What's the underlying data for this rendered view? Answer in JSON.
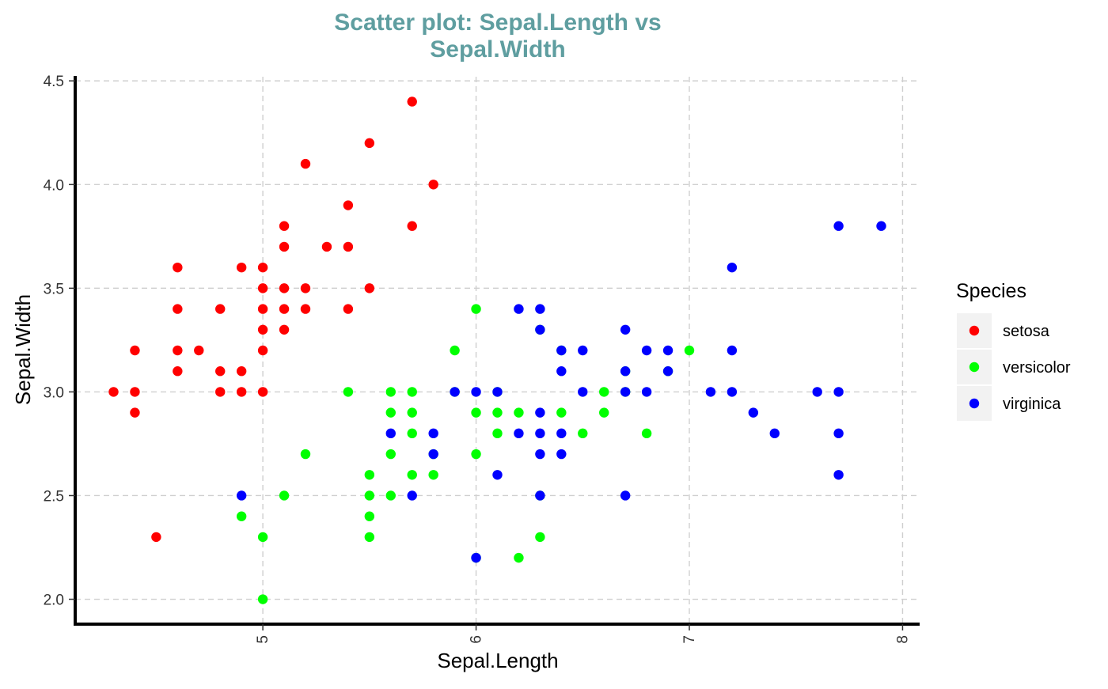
{
  "chart_data": {
    "type": "scatter",
    "title": [
      "Scatter plot: Sepal.Length vs",
      "Sepal.Width"
    ],
    "title_color": "#5f9ea0",
    "xlabel": "Sepal.Length",
    "ylabel": "Sepal.Width",
    "xlim": [
      4.12,
      8.08
    ],
    "ylim": [
      1.88,
      4.52
    ],
    "x_ticks": [
      "5",
      "6",
      "7",
      "8"
    ],
    "y_ticks": [
      "2.0",
      "2.5",
      "3.0",
      "3.5",
      "4.0",
      "4.5"
    ],
    "grid": true,
    "grid_style": "dashed",
    "legend": {
      "title": "Species",
      "position": "right"
    },
    "series": [
      {
        "name": "setosa",
        "color": "#ff0000",
        "points": [
          [
            4.3,
            3.0
          ],
          [
            4.4,
            2.9
          ],
          [
            4.4,
            3.0
          ],
          [
            4.4,
            3.2
          ],
          [
            4.5,
            2.3
          ],
          [
            4.6,
            3.1
          ],
          [
            4.6,
            3.2
          ],
          [
            4.6,
            3.4
          ],
          [
            4.6,
            3.6
          ],
          [
            4.7,
            3.2
          ],
          [
            4.8,
            3.0
          ],
          [
            4.8,
            3.1
          ],
          [
            4.8,
            3.4
          ],
          [
            4.9,
            3.0
          ],
          [
            4.9,
            3.1
          ],
          [
            4.9,
            3.6
          ],
          [
            5.0,
            3.0
          ],
          [
            5.0,
            3.2
          ],
          [
            5.0,
            3.3
          ],
          [
            5.0,
            3.4
          ],
          [
            5.0,
            3.5
          ],
          [
            5.0,
            3.6
          ],
          [
            5.1,
            3.3
          ],
          [
            5.1,
            3.4
          ],
          [
            5.1,
            3.5
          ],
          [
            5.1,
            3.7
          ],
          [
            5.1,
            3.8
          ],
          [
            5.2,
            3.4
          ],
          [
            5.2,
            3.5
          ],
          [
            5.2,
            4.1
          ],
          [
            5.3,
            3.7
          ],
          [
            5.4,
            3.4
          ],
          [
            5.4,
            3.7
          ],
          [
            5.4,
            3.9
          ],
          [
            5.5,
            3.5
          ],
          [
            5.5,
            4.2
          ],
          [
            5.7,
            3.8
          ],
          [
            5.7,
            4.4
          ],
          [
            5.8,
            4.0
          ]
        ]
      },
      {
        "name": "versicolor",
        "color": "#00ff00",
        "points": [
          [
            4.9,
            2.4
          ],
          [
            5.0,
            2.0
          ],
          [
            5.0,
            2.3
          ],
          [
            5.1,
            2.5
          ],
          [
            5.2,
            2.7
          ],
          [
            5.4,
            3.0
          ],
          [
            5.5,
            2.3
          ],
          [
            5.5,
            2.4
          ],
          [
            5.5,
            2.5
          ],
          [
            5.5,
            2.6
          ],
          [
            5.6,
            2.5
          ],
          [
            5.6,
            2.7
          ],
          [
            5.6,
            2.9
          ],
          [
            5.6,
            3.0
          ],
          [
            5.7,
            2.6
          ],
          [
            5.7,
            2.8
          ],
          [
            5.7,
            2.9
          ],
          [
            5.7,
            3.0
          ],
          [
            5.8,
            2.6
          ],
          [
            5.8,
            2.7
          ],
          [
            5.9,
            3.0
          ],
          [
            5.9,
            3.2
          ],
          [
            6.0,
            2.2
          ],
          [
            6.0,
            2.7
          ],
          [
            6.0,
            2.9
          ],
          [
            6.0,
            3.4
          ],
          [
            6.1,
            2.8
          ],
          [
            6.1,
            2.9
          ],
          [
            6.1,
            3.0
          ],
          [
            6.2,
            2.2
          ],
          [
            6.2,
            2.9
          ],
          [
            6.3,
            2.3
          ],
          [
            6.3,
            2.5
          ],
          [
            6.3,
            3.3
          ],
          [
            6.4,
            2.9
          ],
          [
            6.4,
            3.2
          ],
          [
            6.5,
            2.8
          ],
          [
            6.6,
            2.9
          ],
          [
            6.6,
            3.0
          ],
          [
            6.7,
            3.0
          ],
          [
            6.7,
            3.1
          ],
          [
            6.8,
            2.8
          ],
          [
            6.9,
            3.1
          ],
          [
            7.0,
            3.2
          ]
        ]
      },
      {
        "name": "virginica",
        "color": "#0000ff",
        "points": [
          [
            4.9,
            2.5
          ],
          [
            5.6,
            2.8
          ],
          [
            5.7,
            2.5
          ],
          [
            5.8,
            2.7
          ],
          [
            5.8,
            2.8
          ],
          [
            5.9,
            3.0
          ],
          [
            6.0,
            2.2
          ],
          [
            6.0,
            3.0
          ],
          [
            6.1,
            2.6
          ],
          [
            6.1,
            3.0
          ],
          [
            6.2,
            2.8
          ],
          [
            6.2,
            3.4
          ],
          [
            6.3,
            2.5
          ],
          [
            6.3,
            2.7
          ],
          [
            6.3,
            2.8
          ],
          [
            6.3,
            2.9
          ],
          [
            6.3,
            3.3
          ],
          [
            6.3,
            3.4
          ],
          [
            6.4,
            2.7
          ],
          [
            6.4,
            2.8
          ],
          [
            6.4,
            3.1
          ],
          [
            6.4,
            3.2
          ],
          [
            6.5,
            3.0
          ],
          [
            6.5,
            3.2
          ],
          [
            6.7,
            2.5
          ],
          [
            6.7,
            3.0
          ],
          [
            6.7,
            3.1
          ],
          [
            6.7,
            3.3
          ],
          [
            6.8,
            3.0
          ],
          [
            6.8,
            3.2
          ],
          [
            6.9,
            3.1
          ],
          [
            6.9,
            3.2
          ],
          [
            7.1,
            3.0
          ],
          [
            7.2,
            3.0
          ],
          [
            7.2,
            3.2
          ],
          [
            7.2,
            3.6
          ],
          [
            7.3,
            2.9
          ],
          [
            7.4,
            2.8
          ],
          [
            7.6,
            3.0
          ],
          [
            7.7,
            2.6
          ],
          [
            7.7,
            2.8
          ],
          [
            7.7,
            3.0
          ],
          [
            7.7,
            3.8
          ],
          [
            7.9,
            3.8
          ]
        ]
      }
    ]
  }
}
